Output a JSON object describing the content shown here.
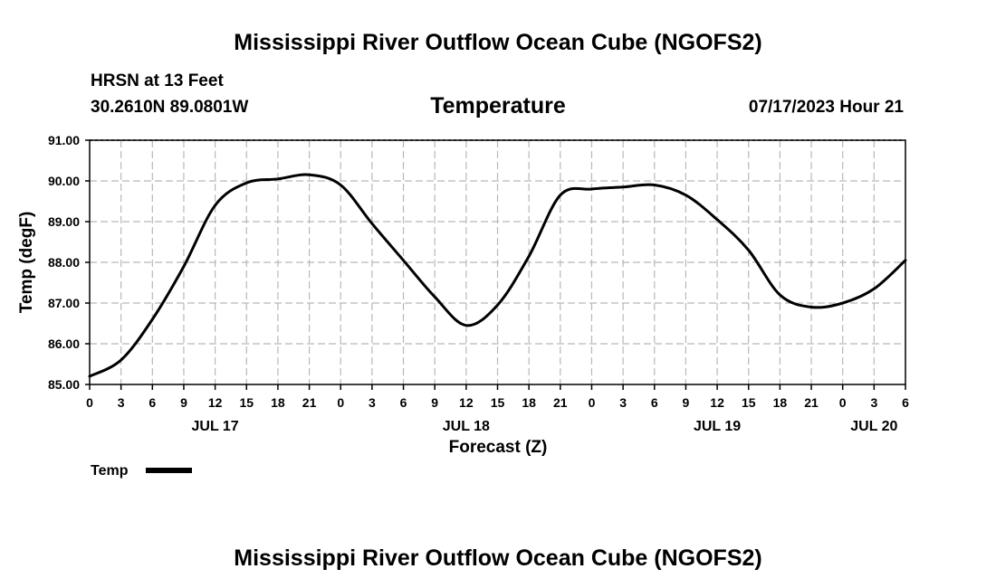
{
  "header": {
    "main_title": "Mississippi River Outflow Ocean Cube (NGOFS2)",
    "station": "HRSN at 13 Feet",
    "coords": "30.2610N  89.0801W",
    "variable": "Temperature",
    "datetime": "07/17/2023 Hour 21"
  },
  "footer": {
    "title": "Mississippi River Outflow Ocean Cube (NGOFS2)"
  },
  "legend": {
    "label": "Temp"
  },
  "chart_data": {
    "type": "line",
    "title": "Temperature",
    "xlabel": "Forecast (Z)",
    "ylabel": "Temp (degF)",
    "xlim": [
      0,
      78
    ],
    "ylim": [
      85.0,
      91.0
    ],
    "grid": true,
    "legend_position": "bottom-left",
    "y_ticks": [
      "85.00",
      "86.00",
      "87.00",
      "88.00",
      "89.00",
      "90.00",
      "91.00"
    ],
    "y_tick_values": [
      85,
      86,
      87,
      88,
      89,
      90,
      91
    ],
    "x_tick_values": [
      0,
      3,
      6,
      9,
      12,
      15,
      18,
      21,
      24,
      27,
      30,
      33,
      36,
      39,
      42,
      45,
      48,
      51,
      54,
      57,
      60,
      63,
      66,
      69,
      72,
      75,
      78
    ],
    "x_tick_labels": [
      "0",
      "3",
      "6",
      "9",
      "12",
      "15",
      "18",
      "21",
      "0",
      "3",
      "6",
      "9",
      "12",
      "15",
      "18",
      "21",
      "0",
      "3",
      "6",
      "9",
      "12",
      "15",
      "18",
      "21",
      "0",
      "3",
      "6"
    ],
    "date_labels": [
      {
        "label": "JUL 17",
        "x": 12
      },
      {
        "label": "JUL 18",
        "x": 36
      },
      {
        "label": "JUL 19",
        "x": 60
      },
      {
        "label": "JUL 20",
        "x": 75
      }
    ],
    "series": [
      {
        "name": "Temp",
        "x": [
          0,
          3,
          6,
          9,
          12,
          15,
          18,
          21,
          24,
          27,
          30,
          33,
          36,
          39,
          42,
          45,
          48,
          51,
          54,
          57,
          60,
          63,
          66,
          69,
          72,
          75,
          78
        ],
        "values": [
          85.2,
          85.6,
          86.6,
          87.9,
          89.4,
          89.95,
          90.05,
          90.15,
          89.9,
          88.95,
          88.05,
          87.15,
          86.45,
          86.95,
          88.15,
          89.65,
          89.8,
          89.85,
          89.9,
          89.65,
          89.05,
          88.3,
          87.2,
          86.9,
          87.0,
          87.35,
          88.05
        ]
      }
    ]
  }
}
